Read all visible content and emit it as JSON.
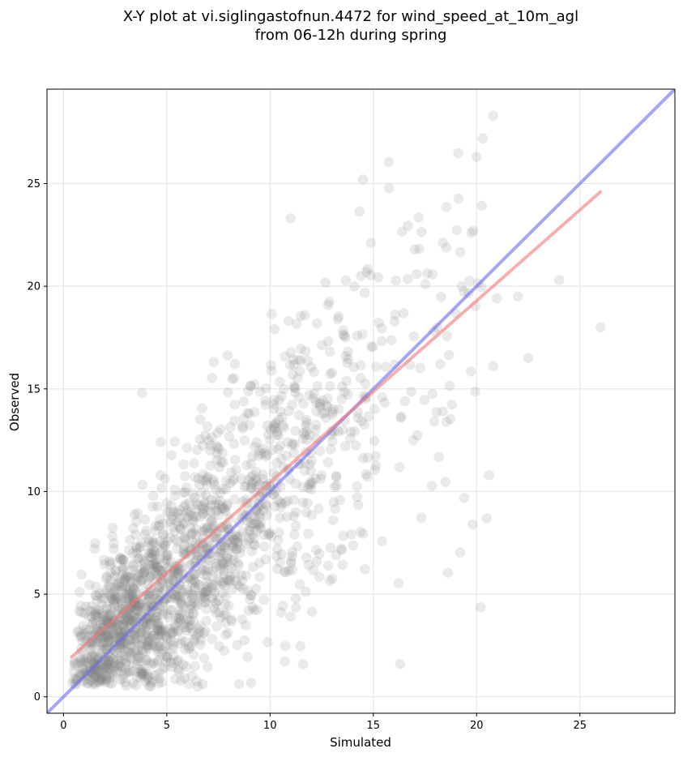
{
  "chart_data": {
    "type": "scatter",
    "title": "X-Y plot at vi.siglingastofnun.4472 for wind_speed_at_10m_agl",
    "subtitle": "from 06-12h during spring",
    "xlabel": "Simulated",
    "ylabel": "Observed",
    "xlim": [
      -0.8,
      29.6
    ],
    "ylim": [
      -0.8,
      29.6
    ],
    "x_ticks": [
      0,
      5,
      10,
      15,
      20,
      25
    ],
    "y_ticks": [
      0,
      5,
      10,
      15,
      20,
      25
    ],
    "x_tick_labels": [
      "0",
      "5",
      "10",
      "15",
      "20",
      "25"
    ],
    "y_tick_labels": [
      "0",
      "5",
      "10",
      "15",
      "20",
      "25"
    ],
    "grid": true,
    "point_color": "#808080",
    "points_estimated": {
      "count": 1800,
      "x_range": [
        0.3,
        26.0
      ],
      "y_range": [
        0.5,
        28.3
      ],
      "notable_points": [
        {
          "x": 26.0,
          "y": 18.0
        },
        {
          "x": 24.0,
          "y": 20.3
        },
        {
          "x": 22.5,
          "y": 16.5
        },
        {
          "x": 22.0,
          "y": 19.5
        },
        {
          "x": 20.8,
          "y": 28.3
        },
        {
          "x": 20.0,
          "y": 26.3
        },
        {
          "x": 20.3,
          "y": 27.2
        },
        {
          "x": 19.8,
          "y": 8.4
        },
        {
          "x": 20.6,
          "y": 10.8
        },
        {
          "x": 16.3,
          "y": 1.6
        },
        {
          "x": 14.5,
          "y": 25.2
        },
        {
          "x": 11.0,
          "y": 23.3
        },
        {
          "x": 3.8,
          "y": 14.8
        },
        {
          "x": 6.5,
          "y": 0.5
        }
      ]
    },
    "lines": [
      {
        "style": "one-to-one",
        "color": "#6b6bf2",
        "x": [
          -0.8,
          29.6
        ],
        "y": [
          -0.8,
          29.6
        ]
      },
      {
        "style": "regression",
        "color": "#f07a7a",
        "x": [
          0.4,
          26.0
        ],
        "y": [
          1.95,
          24.6
        ]
      }
    ]
  }
}
